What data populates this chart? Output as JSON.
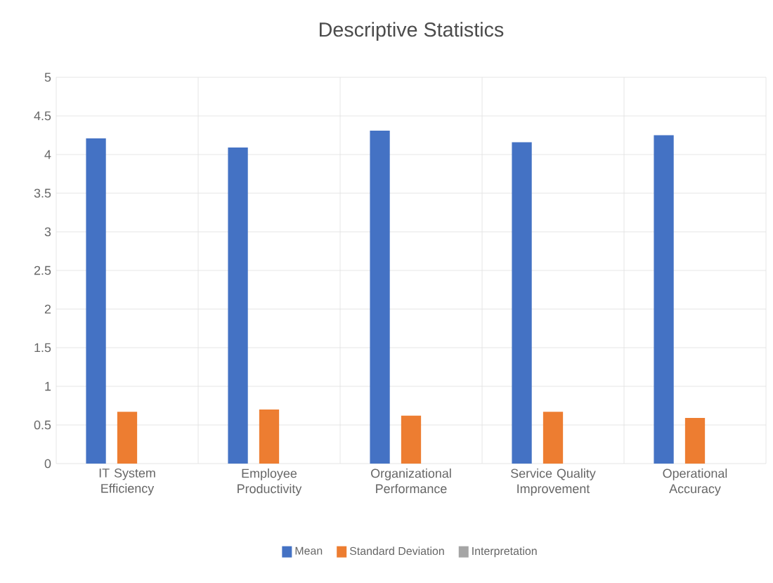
{
  "chart_data": {
    "type": "bar",
    "title": "Descriptive Statistics",
    "categories": [
      "IT System Efficiency",
      "Employee Productivity",
      "Organizational Performance",
      "Service Quality Improvement",
      "Operational Accuracy"
    ],
    "series": [
      {
        "name": "Mean",
        "color": "#4472c4",
        "values": [
          4.21,
          4.09,
          4.31,
          4.16,
          4.25
        ]
      },
      {
        "name": "Standard Deviation",
        "color": "#ed7d31",
        "values": [
          0.67,
          0.7,
          0.62,
          0.67,
          0.59
        ]
      },
      {
        "name": "Interpretation",
        "color": "#a5a5a5",
        "values": [
          null,
          null,
          null,
          null,
          null
        ]
      }
    ],
    "ylim": [
      0,
      5
    ],
    "yticks": [
      0,
      0.5,
      1,
      1.5,
      2,
      2.5,
      3,
      3.5,
      4,
      4.5,
      5
    ],
    "grid": true,
    "legend": "bottom"
  }
}
